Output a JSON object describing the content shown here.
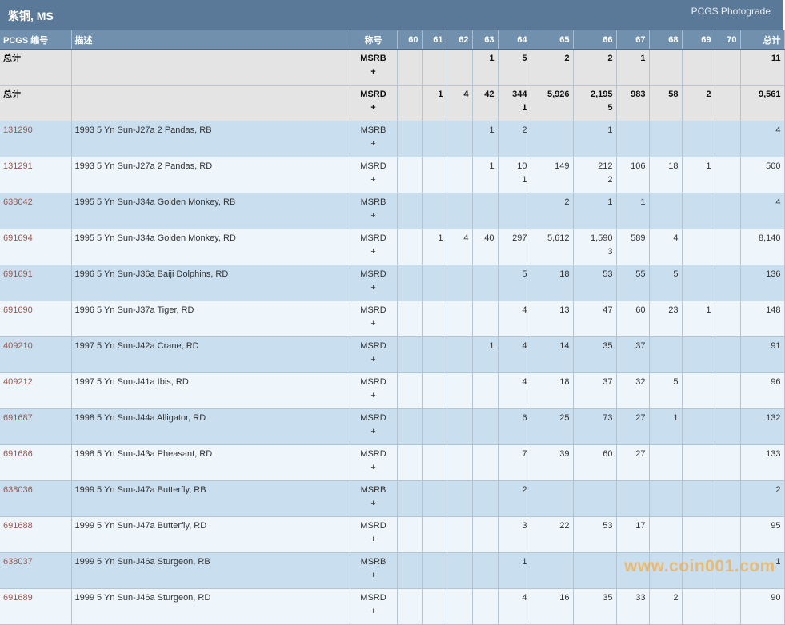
{
  "header": {
    "title": "紫铜, MS",
    "brand": "PCGS Photograde"
  },
  "columns": [
    "PCGS 编号",
    "描述",
    "称号",
    "60",
    "61",
    "62",
    "63",
    "64",
    "65",
    "66",
    "67",
    "68",
    "69",
    "70",
    "总计"
  ],
  "rows": [
    {
      "kind": "total",
      "cells": [
        "总计",
        "",
        "MSRB\n+",
        "",
        "",
        "",
        "1",
        "5",
        "2",
        "2",
        "1",
        "",
        "",
        "",
        "11"
      ]
    },
    {
      "kind": "total",
      "cells": [
        "总计",
        "",
        "MSRD\n+",
        "",
        "1",
        "4",
        "42",
        "344\n1",
        "5,926",
        "2,195\n5",
        "983",
        "58",
        "2",
        "",
        "9,561"
      ]
    },
    {
      "kind": "coin",
      "cells": [
        "131290",
        "1993 5 Yn Sun-J27a 2 Pandas, RB",
        "MSRB\n+",
        "",
        "",
        "",
        "1",
        "2",
        "",
        "1",
        "",
        "",
        "",
        "",
        "4"
      ]
    },
    {
      "kind": "coin",
      "cells": [
        "131291",
        "1993 5 Yn Sun-J27a 2 Pandas, RD",
        "MSRD\n+",
        "",
        "",
        "",
        "1",
        "10\n1",
        "149",
        "212\n2",
        "106",
        "18",
        "1",
        "",
        "500"
      ]
    },
    {
      "kind": "coin",
      "cells": [
        "638042",
        "1995 5 Yn Sun-J34a Golden Monkey, RB",
        "MSRB\n+",
        "",
        "",
        "",
        "",
        "",
        "2",
        "1",
        "1",
        "",
        "",
        "",
        "4"
      ]
    },
    {
      "kind": "coin",
      "cells": [
        "691694",
        "1995 5 Yn Sun-J34a Golden Monkey, RD",
        "MSRD\n+",
        "",
        "1",
        "4",
        "40",
        "297",
        "5,612",
        "1,590\n3",
        "589",
        "4",
        "",
        "",
        "8,140"
      ]
    },
    {
      "kind": "coin",
      "cells": [
        "691691",
        "1996 5 Yn Sun-J36a Baiji Dolphins, RD",
        "MSRD\n+",
        "",
        "",
        "",
        "",
        "5",
        "18",
        "53",
        "55",
        "5",
        "",
        "",
        "136"
      ]
    },
    {
      "kind": "coin",
      "cells": [
        "691690",
        "1996 5 Yn Sun-J37a Tiger, RD",
        "MSRD\n+",
        "",
        "",
        "",
        "",
        "4",
        "13",
        "47",
        "60",
        "23",
        "1",
        "",
        "148"
      ]
    },
    {
      "kind": "coin",
      "cells": [
        "409210",
        "1997 5 Yn Sun-J42a Crane, RD",
        "MSRD\n+",
        "",
        "",
        "",
        "1",
        "4",
        "14",
        "35",
        "37",
        "",
        "",
        "",
        "91"
      ]
    },
    {
      "kind": "coin",
      "cells": [
        "409212",
        "1997 5 Yn Sun-J41a Ibis, RD",
        "MSRD\n+",
        "",
        "",
        "",
        "",
        "4",
        "18",
        "37",
        "32",
        "5",
        "",
        "",
        "96"
      ]
    },
    {
      "kind": "coin",
      "cells": [
        "691687",
        "1998 5 Yn Sun-J44a Alligator, RD",
        "MSRD\n+",
        "",
        "",
        "",
        "",
        "6",
        "25",
        "73",
        "27",
        "1",
        "",
        "",
        "132"
      ]
    },
    {
      "kind": "coin",
      "cells": [
        "691686",
        "1998 5 Yn Sun-J43a Pheasant, RD",
        "MSRD\n+",
        "",
        "",
        "",
        "",
        "7",
        "39",
        "60",
        "27",
        "",
        "",
        "",
        "133"
      ]
    },
    {
      "kind": "coin",
      "cells": [
        "638036",
        "1999 5 Yn Sun-J47a Butterfly, RB",
        "MSRB\n+",
        "",
        "",
        "",
        "",
        "2",
        "",
        "",
        "",
        "",
        "",
        "",
        "2"
      ]
    },
    {
      "kind": "coin",
      "cells": [
        "691688",
        "1999 5 Yn Sun-J47a Butterfly, RD",
        "MSRD\n+",
        "",
        "",
        "",
        "",
        "3",
        "22",
        "53",
        "17",
        "",
        "",
        "",
        "95"
      ]
    },
    {
      "kind": "coin",
      "cells": [
        "638037",
        "1999 5 Yn Sun-J46a Sturgeon, RB",
        "MSRB\n+",
        "",
        "",
        "",
        "",
        "1",
        "",
        "",
        "",
        "",
        "",
        "",
        "1"
      ]
    },
    {
      "kind": "coin",
      "cells": [
        "691689",
        "1999 5 Yn Sun-J46a Sturgeon, RD",
        "MSRD\n+",
        "",
        "",
        "",
        "",
        "4",
        "16",
        "35",
        "33",
        "2",
        "",
        "",
        "90"
      ]
    }
  ],
  "watermark": "www.coin001.com",
  "colors": {
    "header_bar": "#5a7897",
    "column_header": "#7190ad",
    "total_row": "#e4e4e4",
    "row_blue": "#c9dff0",
    "row_light": "#eef5fb",
    "link": "#a0574b"
  }
}
